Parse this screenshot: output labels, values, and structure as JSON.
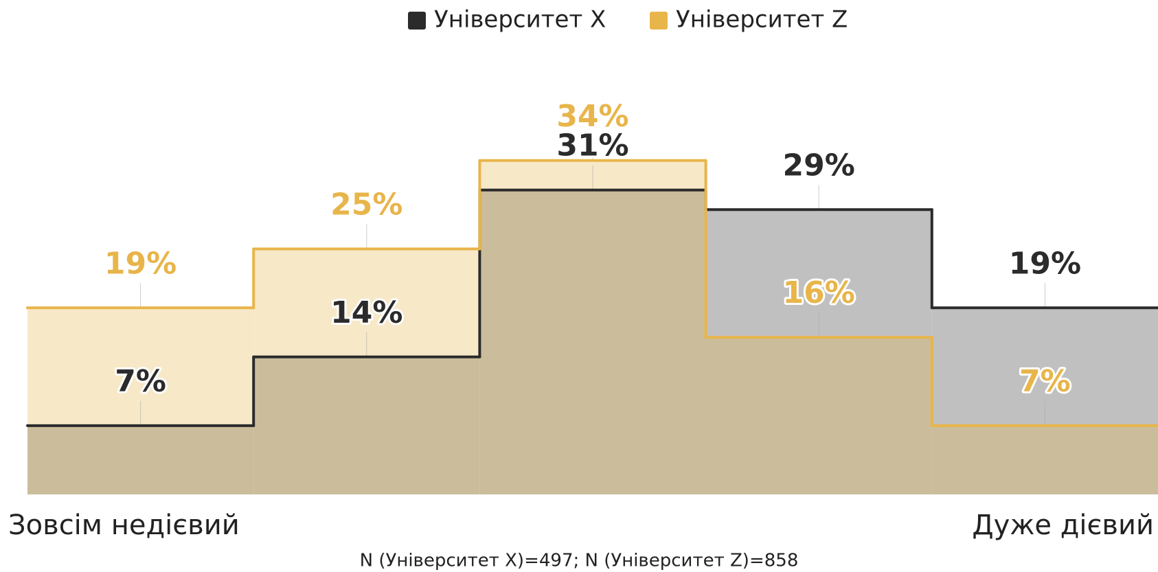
{
  "chart_data": {
    "type": "step",
    "categories": [
      null,
      null,
      null,
      null,
      null
    ],
    "series": [
      {
        "name": "Університет X",
        "color": "#2b2b2b",
        "fill": "#c0c0c0",
        "values": [
          7,
          14,
          31,
          29,
          19
        ],
        "value_labels": [
          "7%",
          "14%",
          "31%",
          "29%",
          "19%"
        ]
      },
      {
        "name": "Університет Z",
        "color": "#e8b54a",
        "fill": "#f7e8c8",
        "values": [
          19,
          25,
          34,
          16,
          7
        ],
        "value_labels": [
          "19%",
          "25%",
          "34%",
          "16%",
          "7%"
        ]
      }
    ],
    "overlap_color": "#cbbd9b",
    "ylim": [
      0,
      40
    ],
    "scale_labels": [
      "Зовсім недієвий",
      "Дуже дієвий"
    ],
    "note": "N (Університет X)=497; N (Університет Z)=858",
    "legend": "top"
  }
}
